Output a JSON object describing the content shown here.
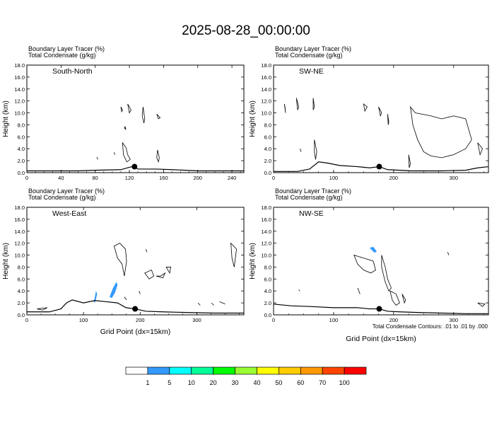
{
  "title": "2025-08-28_00:00:00",
  "footnote": "Total Condensate Contours: .01 to .01 by .000",
  "colors": {
    "tracer_fill": "#3399ff",
    "terrain_line": "#000000",
    "contour_line": "#000000"
  },
  "chart_data": [
    {
      "type": "contour",
      "panel": "South-North",
      "subtitle_line1": "Boundary Layer Tracer   (%)",
      "subtitle_line2": "Total Condensate   (g/kg)",
      "xlabel": "",
      "ylabel": "Height (km)",
      "xlim": [
        0,
        254
      ],
      "ylim": [
        0,
        18
      ],
      "xticks": [
        0,
        40,
        80,
        120,
        160,
        200,
        240
      ],
      "yticks": [
        0.0,
        2.0,
        4.0,
        6.0,
        8.0,
        10.0,
        12.0,
        14.0,
        16.0,
        18.0
      ],
      "marker": {
        "x": 126,
        "y": 1.0
      },
      "terrain": [
        [
          0,
          0.3
        ],
        [
          60,
          0.3
        ],
        [
          80,
          0.4
        ],
        [
          110,
          0.5
        ],
        [
          120,
          0.9
        ],
        [
          124,
          1.0
        ],
        [
          130,
          0.6
        ],
        [
          150,
          0.6
        ],
        [
          170,
          0.5
        ],
        [
          200,
          0.3
        ],
        [
          254,
          0.3
        ]
      ],
      "contours": [
        [
          [
            110,
            11.0
          ],
          [
            112,
            10.5
          ],
          [
            111,
            10.2
          ]
        ],
        [
          [
            118,
            11.5
          ],
          [
            122,
            10.5
          ],
          [
            120,
            10.0
          ]
        ],
        [
          [
            136,
            11.0
          ],
          [
            138,
            9.0
          ],
          [
            137,
            8.3
          ],
          [
            135,
            9.5
          ]
        ],
        [
          [
            152,
            9.8
          ],
          [
            156,
            9.2
          ],
          [
            154,
            9.0
          ]
        ],
        [
          [
            114,
            7.5
          ],
          [
            116,
            7.2
          ],
          [
            115,
            7.7
          ]
        ],
        [
          [
            112,
            5.0
          ],
          [
            116,
            4.2
          ],
          [
            118,
            3.0
          ],
          [
            121,
            2.2
          ],
          [
            117,
            1.8
          ],
          [
            113,
            3.0
          ]
        ],
        [
          [
            153,
            3.8
          ],
          [
            155,
            2.5
          ],
          [
            154,
            1.8
          ],
          [
            152,
            2.5
          ]
        ],
        [
          [
            82,
            2.6
          ],
          [
            83,
            2.2
          ]
        ],
        [
          [
            102,
            3.4
          ],
          [
            103,
            3.0
          ]
        ]
      ],
      "tracer": []
    },
    {
      "type": "contour",
      "panel": "SW-NE",
      "subtitle_line1": "Boundary Layer Tracer   (%)",
      "subtitle_line2": "Total Condensate   (g/kg)",
      "xlabel": "",
      "ylabel": "Height (km)",
      "xlim": [
        0,
        358
      ],
      "ylim": [
        0,
        18
      ],
      "xticks": [
        0,
        100,
        200,
        300
      ],
      "yticks": [
        0.0,
        2.0,
        4.0,
        6.0,
        8.0,
        10.0,
        12.0,
        14.0,
        16.0,
        18.0
      ],
      "marker": {
        "x": 176,
        "y": 1.0
      },
      "terrain": [
        [
          0,
          0.2
        ],
        [
          40,
          0.2
        ],
        [
          60,
          0.6
        ],
        [
          75,
          1.8
        ],
        [
          90,
          1.6
        ],
        [
          110,
          1.2
        ],
        [
          140,
          1.0
        ],
        [
          160,
          0.8
        ],
        [
          176,
          1.0
        ],
        [
          190,
          0.5
        ],
        [
          230,
          0.3
        ],
        [
          280,
          0.3
        ],
        [
          320,
          0.4
        ],
        [
          340,
          0.8
        ],
        [
          358,
          1.0
        ]
      ],
      "contours": [
        [
          [
            18,
            11.5
          ],
          [
            20,
            10.0
          ],
          [
            19,
            11.0
          ]
        ],
        [
          [
            38,
            12.5
          ],
          [
            42,
            11.0
          ],
          [
            40,
            10.5
          ]
        ],
        [
          [
            66,
            12.5
          ],
          [
            68,
            11.0
          ],
          [
            66,
            10.5
          ]
        ],
        [
          [
            150,
            11.5
          ],
          [
            156,
            11.0
          ],
          [
            152,
            10.3
          ]
        ],
        [
          [
            175,
            11.0
          ],
          [
            180,
            10.0
          ],
          [
            178,
            9.5
          ]
        ],
        [
          [
            190,
            9.8
          ],
          [
            192,
            8.5
          ],
          [
            191,
            8.0
          ]
        ],
        [
          [
            228,
            11.0
          ],
          [
            236,
            10.0
          ],
          [
            262,
            9.5
          ],
          [
            280,
            9.0
          ],
          [
            300,
            9.5
          ],
          [
            320,
            9.0
          ],
          [
            330,
            5.5
          ],
          [
            320,
            4.0
          ],
          [
            300,
            3.0
          ],
          [
            280,
            2.5
          ],
          [
            262,
            2.8
          ],
          [
            250,
            3.5
          ],
          [
            240,
            5.5
          ],
          [
            232,
            8.0
          ]
        ],
        [
          [
            68,
            5.5
          ],
          [
            72,
            3.5
          ],
          [
            70,
            2.2
          ],
          [
            68,
            3.5
          ]
        ],
        [
          [
            225,
            3.0
          ],
          [
            228,
            1.5
          ],
          [
            226,
            0.8
          ]
        ],
        [
          [
            340,
            5.0
          ],
          [
            348,
            4.0
          ],
          [
            344,
            3.0
          ]
        ],
        [
          [
            44,
            4.0
          ],
          [
            46,
            3.5
          ]
        ]
      ],
      "tracer": []
    },
    {
      "type": "contour",
      "panel": "West-East",
      "subtitle_line1": "Boundary Layer Tracer   (%)",
      "subtitle_line2": "Total Condensate   (g/kg)",
      "xlabel": "Grid Point (dx=15km)",
      "ylabel": "Height (km)",
      "xlim": [
        0,
        383
      ],
      "ylim": [
        0,
        18
      ],
      "xticks": [
        0,
        100,
        200,
        300
      ],
      "yticks": [
        0.0,
        2.0,
        4.0,
        6.0,
        8.0,
        10.0,
        12.0,
        14.0,
        16.0,
        18.0
      ],
      "marker": {
        "x": 191,
        "y": 1.0
      },
      "terrain": [
        [
          0,
          0.5
        ],
        [
          40,
          0.5
        ],
        [
          60,
          1.0
        ],
        [
          70,
          2.0
        ],
        [
          80,
          2.5
        ],
        [
          100,
          2.0
        ],
        [
          120,
          2.4
        ],
        [
          140,
          2.2
        ],
        [
          160,
          2.0
        ],
        [
          175,
          1.2
        ],
        [
          191,
          1.0
        ],
        [
          210,
          0.6
        ],
        [
          240,
          0.5
        ],
        [
          280,
          0.4
        ],
        [
          330,
          0.3
        ],
        [
          370,
          0.3
        ],
        [
          383,
          0.3
        ]
      ],
      "contours": [
        [
          [
            154,
            11.5
          ],
          [
            164,
            12.0
          ],
          [
            174,
            11.0
          ],
          [
            176,
            9.0
          ],
          [
            172,
            6.5
          ],
          [
            168,
            8.5
          ],
          [
            160,
            9.5
          ]
        ],
        [
          [
            210,
            11.0
          ],
          [
            212,
            10.5
          ]
        ],
        [
          [
            208,
            7.0
          ],
          [
            216,
            6.0
          ],
          [
            224,
            6.5
          ],
          [
            220,
            7.5
          ]
        ],
        [
          [
            228,
            6.5
          ],
          [
            236,
            6.5
          ],
          [
            244,
            7.0
          ],
          [
            240,
            6.2
          ]
        ],
        [
          [
            246,
            8.0
          ],
          [
            254,
            8.0
          ],
          [
            252,
            7.0
          ]
        ],
        [
          [
            360,
            12.0
          ],
          [
            370,
            11.0
          ],
          [
            366,
            8.0
          ],
          [
            362,
            9.5
          ]
        ],
        [
          [
            198,
            4.0
          ],
          [
            200,
            3.5
          ]
        ],
        [
          [
            172,
            3.0
          ],
          [
            176,
            2.5
          ]
        ],
        [
          [
            302,
            2.0
          ],
          [
            306,
            1.6
          ]
        ],
        [
          [
            326,
            2.0
          ],
          [
            330,
            1.6
          ]
        ],
        [
          [
            340,
            2.2
          ],
          [
            350,
            1.8
          ]
        ],
        [
          [
            18,
            1.0
          ],
          [
            28,
            0.8
          ],
          [
            36,
            1.2
          ]
        ]
      ],
      "tracer": [
        [
          [
            118,
            2.0
          ],
          [
            120,
            3.0
          ],
          [
            122,
            4.0
          ],
          [
            124,
            3.5
          ],
          [
            121,
            2.2
          ]
        ],
        [
          [
            146,
            3.0
          ],
          [
            152,
            4.5
          ],
          [
            158,
            5.5
          ],
          [
            160,
            5.0
          ],
          [
            156,
            3.8
          ],
          [
            150,
            2.8
          ]
        ]
      ]
    },
    {
      "type": "contour",
      "panel": "NW-SE",
      "subtitle_line1": "Boundary Layer Tracer   (%)",
      "subtitle_line2": "Total Condensate   (g/kg)",
      "xlabel": "Grid Point (dx=15km)",
      "ylabel": "Height (km)",
      "xlim": [
        0,
        358
      ],
      "ylim": [
        0,
        18
      ],
      "xticks": [
        0,
        100,
        200,
        300
      ],
      "yticks": [
        0.0,
        2.0,
        4.0,
        6.0,
        8.0,
        10.0,
        12.0,
        14.0,
        16.0,
        18.0
      ],
      "marker": {
        "x": 176,
        "y": 1.0
      },
      "terrain": [
        [
          0,
          1.8
        ],
        [
          30,
          1.5
        ],
        [
          60,
          1.4
        ],
        [
          100,
          1.2
        ],
        [
          140,
          1.2
        ],
        [
          160,
          1.0
        ],
        [
          176,
          1.0
        ],
        [
          190,
          0.6
        ],
        [
          210,
          0.5
        ],
        [
          240,
          0.4
        ],
        [
          280,
          0.3
        ],
        [
          320,
          0.2
        ],
        [
          358,
          0.2
        ]
      ],
      "contours": [
        [
          [
            134,
            10.0
          ],
          [
            150,
            9.5
          ],
          [
            166,
            9.0
          ],
          [
            170,
            7.5
          ],
          [
            162,
            7.0
          ],
          [
            150,
            7.5
          ],
          [
            140,
            8.5
          ]
        ],
        [
          [
            180,
            10.0
          ],
          [
            186,
            8.0
          ],
          [
            190,
            6.0
          ],
          [
            196,
            4.5
          ],
          [
            192,
            4.0
          ],
          [
            186,
            5.5
          ],
          [
            180,
            8.0
          ]
        ],
        [
          [
            290,
            10.5
          ],
          [
            292,
            10.0
          ]
        ],
        [
          [
            42,
            4.2
          ],
          [
            44,
            4.0
          ]
        ],
        [
          [
            140,
            4.5
          ],
          [
            144,
            3.5
          ]
        ],
        [
          [
            194,
            4.0
          ],
          [
            204,
            3.5
          ],
          [
            210,
            2.0
          ],
          [
            204,
            1.6
          ],
          [
            198,
            2.4
          ]
        ],
        [
          [
            214,
            3.5
          ],
          [
            220,
            2.5
          ],
          [
            218,
            2.0
          ]
        ],
        [
          [
            340,
            2.0
          ],
          [
            352,
            1.8
          ],
          [
            348,
            1.4
          ]
        ]
      ],
      "tracer": [
        [
          [
            160,
            11.2
          ],
          [
            168,
            10.4
          ],
          [
            172,
            10.6
          ],
          [
            166,
            11.4
          ]
        ]
      ]
    }
  ],
  "colorbar": {
    "labels": [
      "1",
      "5",
      "10",
      "20",
      "30",
      "40",
      "50",
      "60",
      "70",
      "100"
    ],
    "colors": [
      "#ffffff",
      "#3399ff",
      "#00ffff",
      "#00ff99",
      "#00ff00",
      "#99ff33",
      "#ffff00",
      "#ffcc00",
      "#ff9900",
      "#ff4400",
      "#ff0000"
    ]
  }
}
